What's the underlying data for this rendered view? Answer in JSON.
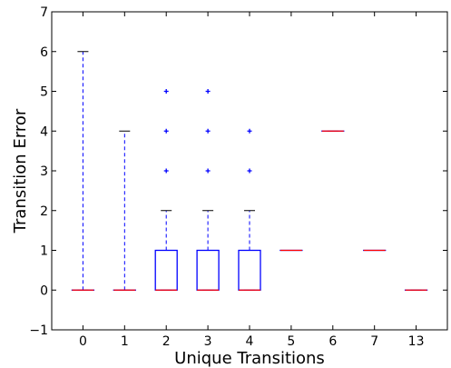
{
  "chart_data": {
    "type": "box",
    "xlabel": "Unique Transitions",
    "ylabel": "Transition Error",
    "ylim": [
      -1,
      7
    ],
    "yticks": [
      -1,
      0,
      1,
      2,
      3,
      4,
      5,
      6,
      7
    ],
    "categories": [
      "0",
      "1",
      "2",
      "3",
      "4",
      "5",
      "6",
      "7",
      "13"
    ],
    "boxes": [
      {
        "category": "0",
        "whislo": 0,
        "q1": 0,
        "median": 0,
        "q3": 0,
        "whishi": 6,
        "fliers": []
      },
      {
        "category": "1",
        "whislo": 0,
        "q1": 0,
        "median": 0,
        "q3": 0,
        "whishi": 4,
        "fliers": []
      },
      {
        "category": "2",
        "whislo": 0,
        "q1": 0,
        "median": 0,
        "q3": 1,
        "whishi": 2,
        "fliers": [
          3,
          4,
          5
        ]
      },
      {
        "category": "3",
        "whislo": 0,
        "q1": 0,
        "median": 0,
        "q3": 1,
        "whishi": 2,
        "fliers": [
          3,
          4,
          5
        ]
      },
      {
        "category": "4",
        "whislo": 0,
        "q1": 0,
        "median": 0,
        "q3": 1,
        "whishi": 2,
        "fliers": [
          3,
          4
        ]
      },
      {
        "category": "5",
        "whislo": 1,
        "q1": 1,
        "median": 1,
        "q3": 1,
        "whishi": 1,
        "fliers": []
      },
      {
        "category": "6",
        "whislo": 4,
        "q1": 4,
        "median": 4,
        "q3": 4,
        "whishi": 4,
        "fliers": []
      },
      {
        "category": "7",
        "whislo": 1,
        "q1": 1,
        "median": 1,
        "q3": 1,
        "whishi": 1,
        "fliers": []
      },
      {
        "category": "13",
        "whislo": 0,
        "q1": 0,
        "median": 0,
        "q3": 0,
        "whishi": 0,
        "fliers": []
      }
    ],
    "grid": false,
    "colors": {
      "box": "#0000ff",
      "whisker": "#0000ff",
      "median": "#ff0000",
      "flier": "#0000ff",
      "cap": "#000000"
    }
  }
}
